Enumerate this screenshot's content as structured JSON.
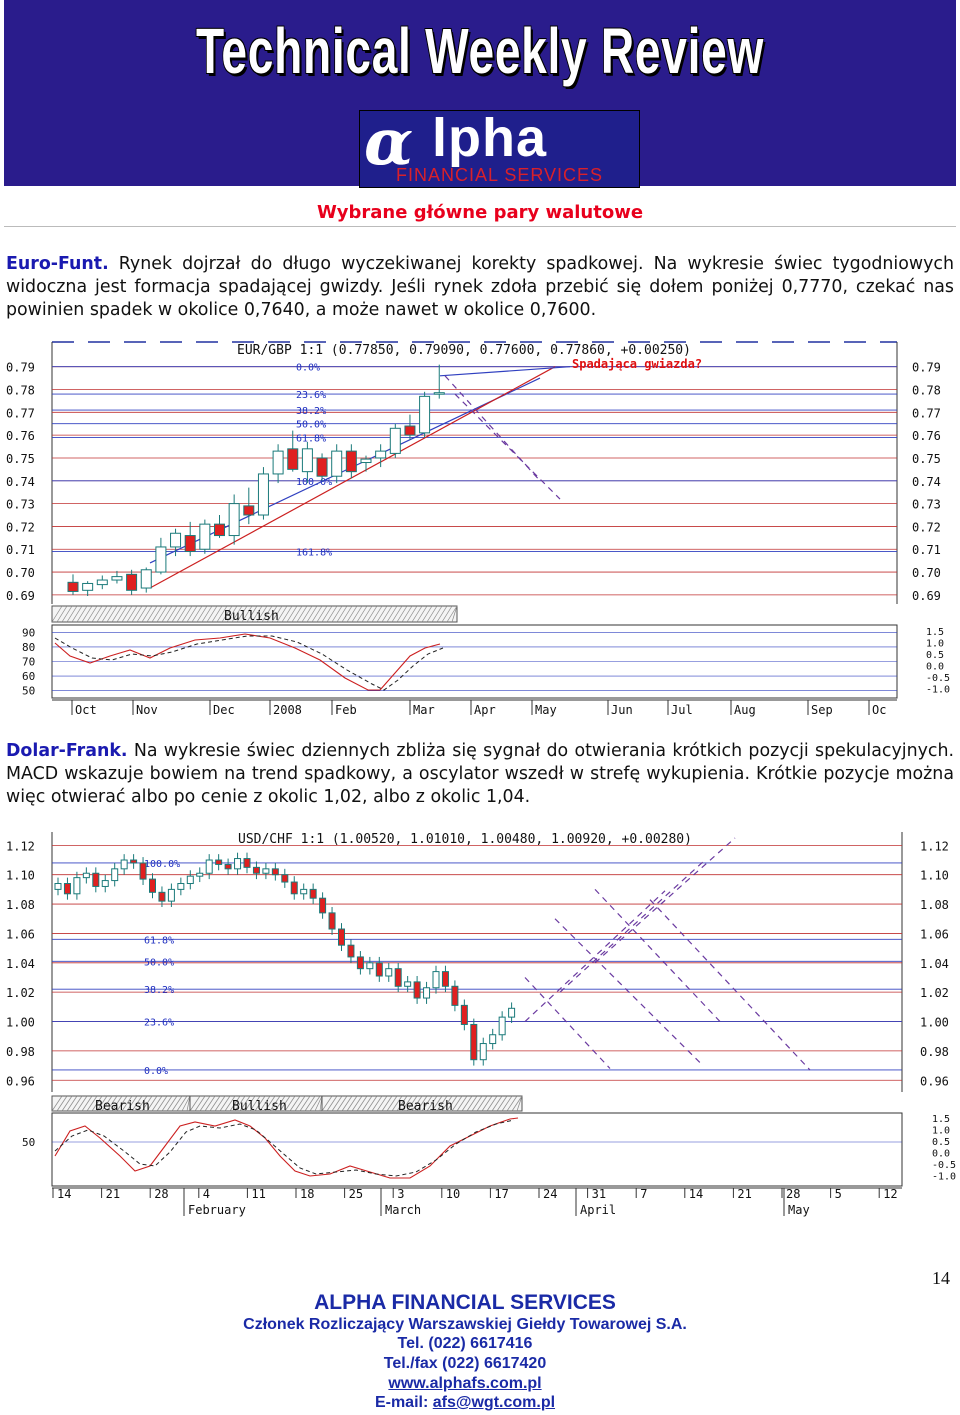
{
  "header": {
    "title": "Technical Weekly Review",
    "logo_name": "lpha",
    "logo_alpha": "α",
    "logo_sub": "FINANCIAL SERVICES"
  },
  "section_title": "Wybrane główne pary walutowe",
  "para1": {
    "lead": "Euro-Funt.",
    "text": " Rynek dojrzał do długo wyczekiwanej korekty spadkowej. Na wykresie świec tygodniowych widoczna jest formacja spadającej gwizdy. Jeśli rynek zdoła przebić się dołem poniżej 0,7770, czekać nas powinien spadek w okolice 0,7640, a może nawet w okolice 0,7600."
  },
  "para2": {
    "lead": "Dolar-Frank.",
    "text": " Na wykresie świec dziennych zbliża się sygnał do otwierania krótkich pozycji spekulacyjnych. MACD wskazuje bowiem na trend spadkowy, a oscylator wszedł w strefę wykupienia. Krótkie pozycje można więc otwierać albo po cenie z okolic 1,02, albo z okolic 1,04."
  },
  "chart_data": [
    {
      "type": "candlestick",
      "title": "EUR/GBP 1:1 (0.77850, 0.79090, 0.77600, 0.77860, +0.00250)",
      "annotation": "Spadająca gwiazda?",
      "y_ticks": [
        "0.79",
        "0.78",
        "0.77",
        "0.76",
        "0.75",
        "0.74",
        "0.73",
        "0.72",
        "0.71",
        "0.70",
        "0.69"
      ],
      "ylim": [
        0.686,
        0.796
      ],
      "fib_levels": [
        {
          "label": "0.0%",
          "value": 0.79
        },
        {
          "label": "23.6%",
          "value": 0.778
        },
        {
          "label": "38.2%",
          "value": 0.771
        },
        {
          "label": "50.0%",
          "value": 0.765
        },
        {
          "label": "61.8%",
          "value": 0.759
        },
        {
          "label": "100.0%",
          "value": 0.74
        },
        {
          "label": "161.8%",
          "value": 0.709
        }
      ],
      "candles": [
        {
          "o": 0.6955,
          "h": 0.699,
          "l": 0.69,
          "c": 0.6915
        },
        {
          "o": 0.692,
          "h": 0.696,
          "l": 0.6895,
          "c": 0.695
        },
        {
          "o": 0.6945,
          "h": 0.6985,
          "l": 0.6925,
          "c": 0.6965
        },
        {
          "o": 0.6965,
          "h": 0.7005,
          "l": 0.695,
          "c": 0.698
        },
        {
          "o": 0.699,
          "h": 0.701,
          "l": 0.69,
          "c": 0.692
        },
        {
          "o": 0.693,
          "h": 0.702,
          "l": 0.691,
          "c": 0.701
        },
        {
          "o": 0.7,
          "h": 0.715,
          "l": 0.699,
          "c": 0.711
        },
        {
          "o": 0.711,
          "h": 0.719,
          "l": 0.707,
          "c": 0.717
        },
        {
          "o": 0.716,
          "h": 0.722,
          "l": 0.707,
          "c": 0.709
        },
        {
          "o": 0.71,
          "h": 0.723,
          "l": 0.708,
          "c": 0.721
        },
        {
          "o": 0.721,
          "h": 0.725,
          "l": 0.715,
          "c": 0.716
        },
        {
          "o": 0.716,
          "h": 0.734,
          "l": 0.712,
          "c": 0.73
        },
        {
          "o": 0.729,
          "h": 0.737,
          "l": 0.721,
          "c": 0.725
        },
        {
          "o": 0.725,
          "h": 0.746,
          "l": 0.723,
          "c": 0.743
        },
        {
          "o": 0.743,
          "h": 0.756,
          "l": 0.739,
          "c": 0.753
        },
        {
          "o": 0.754,
          "h": 0.762,
          "l": 0.744,
          "c": 0.745
        },
        {
          "o": 0.744,
          "h": 0.757,
          "l": 0.739,
          "c": 0.754
        },
        {
          "o": 0.75,
          "h": 0.752,
          "l": 0.74,
          "c": 0.742
        },
        {
          "o": 0.742,
          "h": 0.756,
          "l": 0.739,
          "c": 0.753
        },
        {
          "o": 0.753,
          "h": 0.756,
          "l": 0.741,
          "c": 0.744
        },
        {
          "o": 0.748,
          "h": 0.751,
          "l": 0.744,
          "c": 0.7495
        },
        {
          "o": 0.75,
          "h": 0.756,
          "l": 0.746,
          "c": 0.753
        },
        {
          "o": 0.752,
          "h": 0.765,
          "l": 0.75,
          "c": 0.763
        },
        {
          "o": 0.764,
          "h": 0.769,
          "l": 0.758,
          "c": 0.76
        },
        {
          "o": 0.761,
          "h": 0.779,
          "l": 0.759,
          "c": 0.777
        },
        {
          "o": 0.7785,
          "h": 0.7909,
          "l": 0.776,
          "c": 0.7786
        }
      ],
      "indicator_label": "Bullish",
      "osc_y_ticks": [
        "90",
        "80",
        "70",
        "60",
        "50"
      ],
      "macd_y_ticks": [
        "1.5",
        "1.0",
        "0.5",
        "0.0",
        "-0.5",
        "-1.0"
      ],
      "x_labels": [
        "Oct",
        "Nov",
        "Dec",
        "2008",
        "Feb",
        "Mar",
        "Apr",
        "May",
        "Jun",
        "Jul",
        "Aug",
        "Sep",
        "Oc"
      ]
    },
    {
      "type": "candlestick",
      "title": "USD/CHF 1:1 (1.00520, 1.01010, 1.00480, 1.00920, +0.00280)",
      "y_ticks": [
        "1.12",
        "1.10",
        "1.08",
        "1.06",
        "1.04",
        "1.02",
        "1.00",
        "0.98",
        "0.96"
      ],
      "ylim": [
        0.952,
        1.125
      ],
      "fib_levels": [
        {
          "label": "100.0%",
          "value": 1.108
        },
        {
          "label": "61.8%",
          "value": 1.056
        },
        {
          "label": "50.0%",
          "value": 1.041
        },
        {
          "label": "38.2%",
          "value": 1.022
        },
        {
          "label": "23.6%",
          "value": 1.0
        },
        {
          "label": "0.0%",
          "value": 0.967
        }
      ],
      "indicator_labels": [
        "Bearish",
        "Bullish",
        "Bearish"
      ],
      "osc_y_ticks": [
        "50"
      ],
      "macd_y_ticks": [
        "1.5",
        "1.0",
        "0.5",
        "0.0",
        "-0.5",
        "-1.0"
      ],
      "x_day_labels": [
        "14",
        "21",
        "28",
        "4",
        "11",
        "18",
        "25",
        "3",
        "10",
        "17",
        "24",
        "31",
        "7",
        "14",
        "21",
        "28",
        "5",
        "12"
      ],
      "x_month_labels": [
        "February",
        "March",
        "April",
        "May"
      ]
    }
  ],
  "footer": {
    "company": "ALPHA FINANCIAL SERVICES",
    "member": "Członek Rozliczający Warszawskiej Giełdy Towarowej S.A.",
    "tel": "Tel. (022) 6617416",
    "fax": "Tel./fax (022) 6617420",
    "web": "www.alphafs.com.pl",
    "email_label": "E-mail: ",
    "email": "afs@wgt.com.pl",
    "page": "14"
  }
}
